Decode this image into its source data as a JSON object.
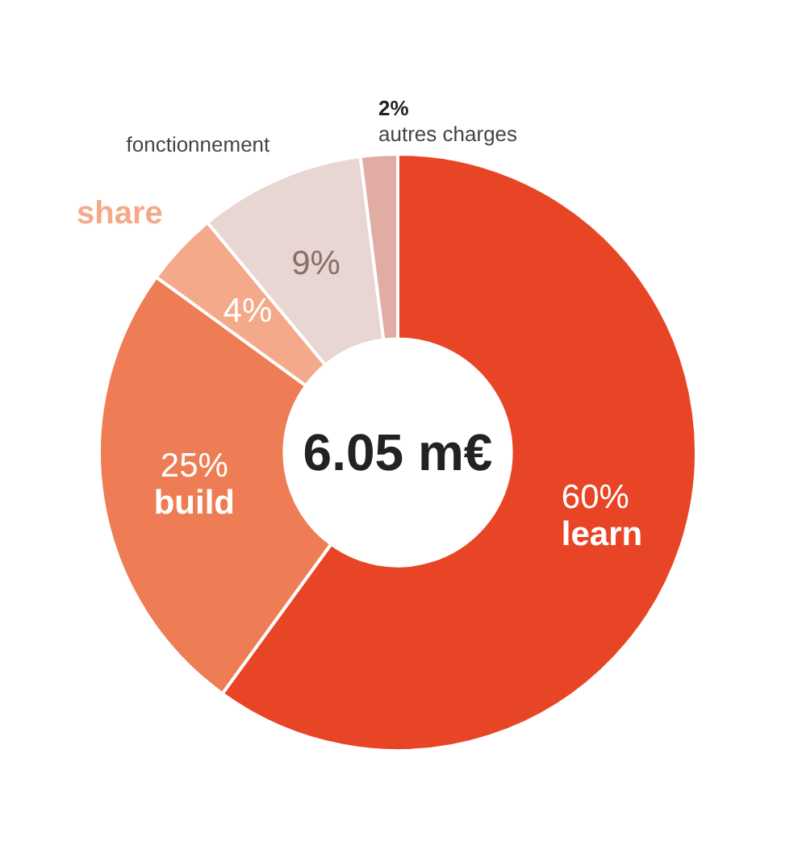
{
  "chart_data": {
    "type": "donut",
    "categories": [
      "learn",
      "build",
      "share",
      "fonctionnement",
      "autres charges"
    ],
    "values": [
      60,
      25,
      4,
      9,
      2
    ],
    "value_labels": [
      "60%",
      "25%",
      "4%",
      "9%",
      "2%"
    ],
    "colors": [
      "#e84526",
      "#ee7d55",
      "#f4a98a",
      "#e8d6d3",
      "#e0aca3"
    ],
    "annotations": [
      "6.05 m€"
    ]
  }
}
